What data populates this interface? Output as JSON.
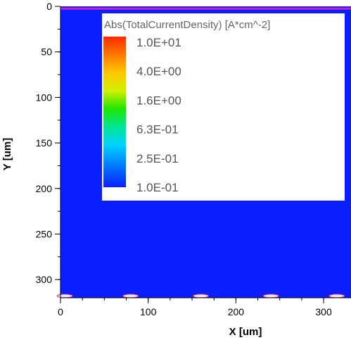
{
  "chart_data": {
    "type": "heatmap",
    "xlabel": "X [um]",
    "ylabel": "Y [um]",
    "xlim": [
      0,
      320
    ],
    "ylim": [
      0,
      320
    ],
    "y_inverted": true,
    "x_ticks": [
      0,
      100,
      200,
      300
    ],
    "y_ticks": [
      0,
      50,
      100,
      150,
      200,
      250,
      300
    ],
    "x_minor_step": 25,
    "y_minor_step": 25,
    "field_value": "1.0E-01",
    "colors": {
      "field": "#0a1eff",
      "top_strip": "#c81ec8",
      "contact": "#e8e8ff",
      "contact_edge": "#c81e78"
    },
    "top_strip_y": 2.5,
    "contacts_x": [
      5,
      80,
      160,
      240,
      315
    ],
    "contacts_y": 318,
    "legend": {
      "title": "Abs(TotalCurrentDensity) [A*cm^-2]",
      "position": "top-right",
      "scale": "log",
      "entries": [
        "1.0E+01",
        "4.0E+00",
        "1.6E+00",
        "6.3E-01",
        "2.5E-01",
        "1.0E-01"
      ],
      "colors": [
        "#ff2a00",
        "#ffa500",
        "#d2f000",
        "#1ee600",
        "#00d2ff",
        "#0a1eff"
      ]
    }
  }
}
